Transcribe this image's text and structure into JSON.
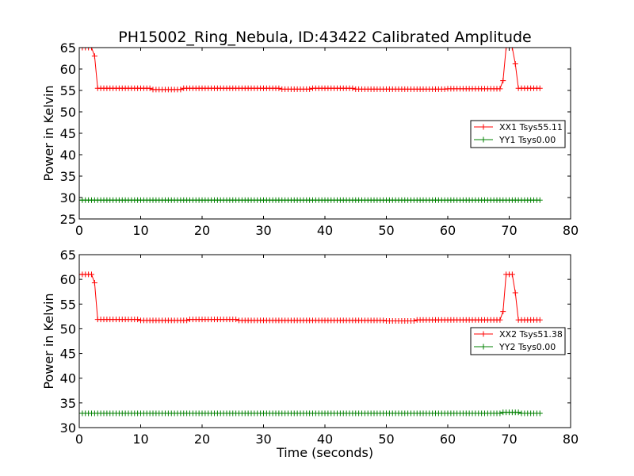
{
  "figure": {
    "title": "PH15002_Ring_Nebula, ID:43422 Calibrated Amplitude",
    "xlabel": "Time (seconds)",
    "colors": {
      "xx": "#ff0000",
      "yy": "#008000"
    }
  },
  "chart_data": [
    {
      "type": "line",
      "title": "PH15002_Ring_Nebula, ID:43422 Calibrated Amplitude",
      "xlabel": "",
      "ylabel": "Power in Kelvin",
      "xlim": [
        0,
        80
      ],
      "ylim": [
        25,
        65
      ],
      "xticks": [
        "0",
        "10",
        "20",
        "30",
        "40",
        "50",
        "60",
        "70",
        "80"
      ],
      "yticks": [
        "25",
        "30",
        "35",
        "40",
        "45",
        "50",
        "55",
        "60",
        "65"
      ],
      "grid": false,
      "legend": "center-right",
      "markers": "plus",
      "sample_interval_s": 0.5,
      "series": [
        {
          "name": "XX1 Tsys55.11",
          "color": "#ff0000",
          "segments": [
            {
              "x_start": 0,
              "x_end": 2.5,
              "y": 65
            },
            {
              "x_start": 2.5,
              "x_end": 3.0,
              "y": 63
            },
            {
              "x_start": 3.0,
              "x_end": 12,
              "y": 55.5
            },
            {
              "x_start": 12,
              "x_end": 17,
              "y": 55.2
            },
            {
              "x_start": 17,
              "x_end": 33,
              "y": 55.5
            },
            {
              "x_start": 33,
              "x_end": 38,
              "y": 55.3
            },
            {
              "x_start": 38,
              "x_end": 45,
              "y": 55.5
            },
            {
              "x_start": 45,
              "x_end": 60,
              "y": 55.3
            },
            {
              "x_start": 60,
              "x_end": 69,
              "y": 55.4
            },
            {
              "x_start": 69,
              "x_end": 69.5,
              "y": 57.3
            },
            {
              "x_start": 69.5,
              "x_end": 71.0,
              "y": 65
            },
            {
              "x_start": 71.0,
              "x_end": 71.5,
              "y": 61.2
            },
            {
              "x_start": 71.5,
              "x_end": 75,
              "y": 55.5
            }
          ]
        },
        {
          "name": "YY1 Tsys0.00",
          "color": "#008000",
          "segments": [
            {
              "x_start": 0,
              "x_end": 75,
              "y": 29.4
            }
          ]
        }
      ]
    },
    {
      "type": "line",
      "title": "",
      "xlabel": "Time (seconds)",
      "ylabel": "Power in Kelvin",
      "xlim": [
        0,
        80
      ],
      "ylim": [
        30,
        65
      ],
      "xticks": [
        "0",
        "10",
        "20",
        "30",
        "40",
        "50",
        "60",
        "70",
        "80"
      ],
      "yticks": [
        "30",
        "35",
        "40",
        "45",
        "50",
        "55",
        "60",
        "65"
      ],
      "grid": false,
      "legend": "center-right",
      "markers": "plus",
      "sample_interval_s": 0.5,
      "series": [
        {
          "name": "XX2 Tsys51.38",
          "color": "#ff0000",
          "segments": [
            {
              "x_start": 0,
              "x_end": 2.5,
              "y": 61
            },
            {
              "x_start": 2.5,
              "x_end": 3.0,
              "y": 59.3
            },
            {
              "x_start": 3.0,
              "x_end": 10,
              "y": 51.9
            },
            {
              "x_start": 10,
              "x_end": 18,
              "y": 51.7
            },
            {
              "x_start": 18,
              "x_end": 26,
              "y": 51.9
            },
            {
              "x_start": 26,
              "x_end": 50,
              "y": 51.7
            },
            {
              "x_start": 50,
              "x_end": 55,
              "y": 51.6
            },
            {
              "x_start": 55,
              "x_end": 69,
              "y": 51.8
            },
            {
              "x_start": 69,
              "x_end": 69.5,
              "y": 53.5
            },
            {
              "x_start": 69.5,
              "x_end": 71.0,
              "y": 61
            },
            {
              "x_start": 71.0,
              "x_end": 71.5,
              "y": 57.3
            },
            {
              "x_start": 71.5,
              "x_end": 75,
              "y": 51.8
            }
          ]
        },
        {
          "name": "YY2 Tsys0.00",
          "color": "#008000",
          "segments": [
            {
              "x_start": 0,
              "x_end": 69,
              "y": 32.9
            },
            {
              "x_start": 69,
              "x_end": 72,
              "y": 33.1
            },
            {
              "x_start": 72,
              "x_end": 75,
              "y": 32.9
            }
          ]
        }
      ]
    }
  ]
}
